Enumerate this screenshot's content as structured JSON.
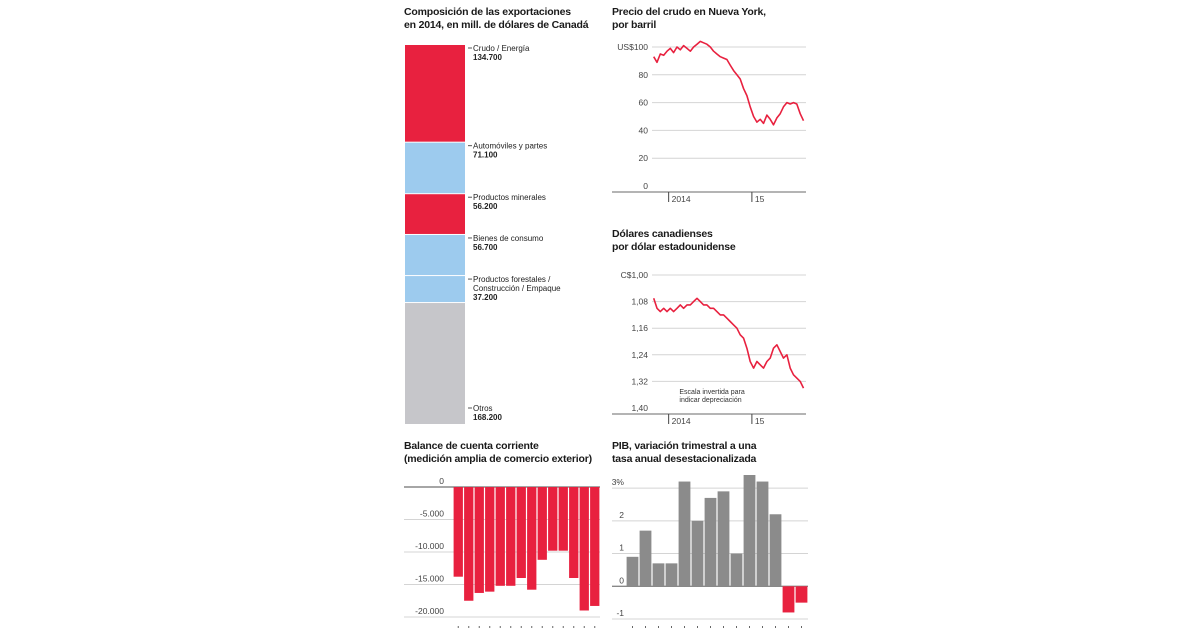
{
  "colors": {
    "red": "#e8213f",
    "light_blue": "#9dcbee",
    "grey_segment": "#c6c6ca",
    "bar_grey": "#8b8b8b",
    "grid": "#d4d4d4",
    "axis": "#888888"
  },
  "chart_data": [
    {
      "id": "exports",
      "type": "bar",
      "subtype": "stacked-single-column",
      "title": "Composición de las exportaciones en 2014, en mill. de dólares de Canadá",
      "title_lines": [
        "Composición de las exportaciones",
        "en 2014, en mill. de dólares de Canadá"
      ],
      "segments": [
        {
          "name": "Crudo / Energía",
          "label_lines": [
            "Crudo / Energía"
          ],
          "value": 134700,
          "value_label": "134.700",
          "color": "red"
        },
        {
          "name": "Automóviles y partes",
          "label_lines": [
            "Automóviles y partes"
          ],
          "value": 71100,
          "value_label": "71.100",
          "color": "light_blue"
        },
        {
          "name": "Productos minerales",
          "label_lines": [
            "Productos minerales"
          ],
          "value": 56200,
          "value_label": "56.200",
          "color": "red"
        },
        {
          "name": "Bienes de consumo",
          "label_lines": [
            "Bienes de consumo"
          ],
          "value": 56700,
          "value_label": "56.700",
          "color": "light_blue"
        },
        {
          "name": "Productos forestales / Construcción / Empaque",
          "label_lines": [
            "Productos forestales /",
            "Construcción / Empaque"
          ],
          "value": 37200,
          "value_label": "37.200",
          "color": "light_blue"
        },
        {
          "name": "Otros",
          "label_lines": [
            "Otros"
          ],
          "value": 168200,
          "value_label": "168.200",
          "color": "grey_segment"
        }
      ]
    },
    {
      "id": "oil",
      "type": "line",
      "title": "Precio del crudo en Nueva York, por barril",
      "title_lines": [
        "Precio del crudo en Nueva York,",
        "por barril"
      ],
      "yticks": [
        0,
        20,
        40,
        60,
        80,
        100
      ],
      "ytick_labels": [
        "0",
        "20",
        "40",
        "60",
        "80",
        "US$100"
      ],
      "ylim": [
        0,
        100
      ],
      "xlim": [
        2013.8,
        2015.65
      ],
      "xticks": [
        2014.0,
        2015.0
      ],
      "xtick_labels": [
        "2014",
        "15"
      ],
      "x": [
        2013.82,
        2013.86,
        2013.9,
        2013.94,
        2013.98,
        2014.02,
        2014.06,
        2014.1,
        2014.14,
        2014.18,
        2014.22,
        2014.26,
        2014.3,
        2014.34,
        2014.38,
        2014.42,
        2014.46,
        2014.5,
        2014.54,
        2014.58,
        2014.62,
        2014.66,
        2014.7,
        2014.74,
        2014.78,
        2014.82,
        2014.86,
        2014.9,
        2014.94,
        2014.98,
        2015.02,
        2015.06,
        2015.1,
        2015.14,
        2015.18,
        2015.22,
        2015.26,
        2015.3,
        2015.34,
        2015.38,
        2015.42,
        2015.46,
        2015.5,
        2015.54,
        2015.58,
        2015.62
      ],
      "y": [
        93,
        89,
        95,
        94,
        97,
        99,
        96,
        100,
        98,
        101,
        99,
        97,
        100,
        102,
        104,
        103,
        102,
        100,
        97,
        95,
        93,
        92,
        91,
        87,
        83,
        80,
        77,
        70,
        65,
        57,
        50,
        46,
        48,
        45,
        51,
        48,
        44,
        49,
        52,
        57,
        60,
        59,
        60,
        59,
        52,
        47
      ]
    },
    {
      "id": "cad",
      "type": "line",
      "title": "Dólares canadienses por dólar estadounidense",
      "title_lines": [
        "Dólares canadienses",
        "por dólar estadounidense"
      ],
      "inverted_y": true,
      "yticks": [
        1.0,
        1.08,
        1.16,
        1.24,
        1.32,
        1.4
      ],
      "ytick_labels": [
        "C$1,00",
        "1,08",
        "1,16",
        "1,24",
        "1,32",
        "1,40"
      ],
      "ylim": [
        1.0,
        1.4
      ],
      "xlim": [
        2013.8,
        2015.65
      ],
      "xticks": [
        2014.0,
        2015.0
      ],
      "xtick_labels": [
        "2014",
        "15"
      ],
      "annotation_lines": [
        "Escala invertida para",
        "indicar depreciación"
      ],
      "x": [
        2013.82,
        2013.86,
        2013.9,
        2013.94,
        2013.98,
        2014.02,
        2014.06,
        2014.1,
        2014.14,
        2014.18,
        2014.22,
        2014.26,
        2014.3,
        2014.34,
        2014.38,
        2014.42,
        2014.46,
        2014.5,
        2014.54,
        2014.58,
        2014.62,
        2014.66,
        2014.7,
        2014.74,
        2014.78,
        2014.82,
        2014.86,
        2014.9,
        2014.94,
        2014.98,
        2015.02,
        2015.06,
        2015.1,
        2015.14,
        2015.18,
        2015.22,
        2015.26,
        2015.3,
        2015.34,
        2015.38,
        2015.42,
        2015.46,
        2015.5,
        2015.54,
        2015.58,
        2015.62
      ],
      "y": [
        1.07,
        1.1,
        1.11,
        1.1,
        1.11,
        1.1,
        1.11,
        1.1,
        1.09,
        1.1,
        1.09,
        1.09,
        1.08,
        1.07,
        1.08,
        1.09,
        1.09,
        1.1,
        1.1,
        1.11,
        1.12,
        1.12,
        1.13,
        1.14,
        1.15,
        1.16,
        1.18,
        1.19,
        1.22,
        1.26,
        1.28,
        1.26,
        1.27,
        1.28,
        1.26,
        1.25,
        1.22,
        1.21,
        1.23,
        1.25,
        1.24,
        1.28,
        1.3,
        1.31,
        1.32,
        1.34
      ]
    },
    {
      "id": "current-account",
      "type": "bar",
      "title": "Balance de cuenta corriente (medición amplia de comercio exterior)",
      "title_lines": [
        "Balance de cuenta corriente",
        "(medición amplia de comercio exterior)"
      ],
      "yticks": [
        0,
        -5000,
        -10000,
        -15000,
        -20000
      ],
      "ytick_labels": [
        "0",
        "-5.000",
        "-10.000",
        "-15.000",
        "-20.000"
      ],
      "ylim": [
        -20000,
        0
      ],
      "categories": [
        "1",
        "2",
        "3",
        "4",
        "5",
        "6",
        "7",
        "8",
        "9",
        "10",
        "11",
        "12",
        "13",
        "14"
      ],
      "values": [
        -13800,
        -17500,
        -16300,
        -16100,
        -15200,
        -15200,
        -14000,
        -15800,
        -11200,
        -9800,
        -9800,
        -14000,
        -19000,
        -18300
      ]
    },
    {
      "id": "gdp",
      "type": "bar",
      "title": "PIB, variación trimestral a una tasa anual desestacionalizada",
      "title_lines": [
        "PIB, variación trimestral a una",
        "tasa anual desestacionalizada"
      ],
      "yticks": [
        3,
        2,
        1,
        0,
        -1
      ],
      "ytick_labels": [
        "3%",
        "2",
        "1",
        "0",
        "-1"
      ],
      "ylim": [
        -1,
        3.4
      ],
      "categories": [
        "1",
        "2",
        "3",
        "4",
        "5",
        "6",
        "7",
        "8",
        "9",
        "10",
        "11",
        "12",
        "13",
        "14"
      ],
      "values": [
        0.9,
        1.7,
        0.7,
        0.7,
        3.2,
        2.0,
        2.7,
        2.9,
        1.0,
        3.4,
        3.2,
        2.2,
        -0.8,
        -0.5
      ]
    }
  ]
}
